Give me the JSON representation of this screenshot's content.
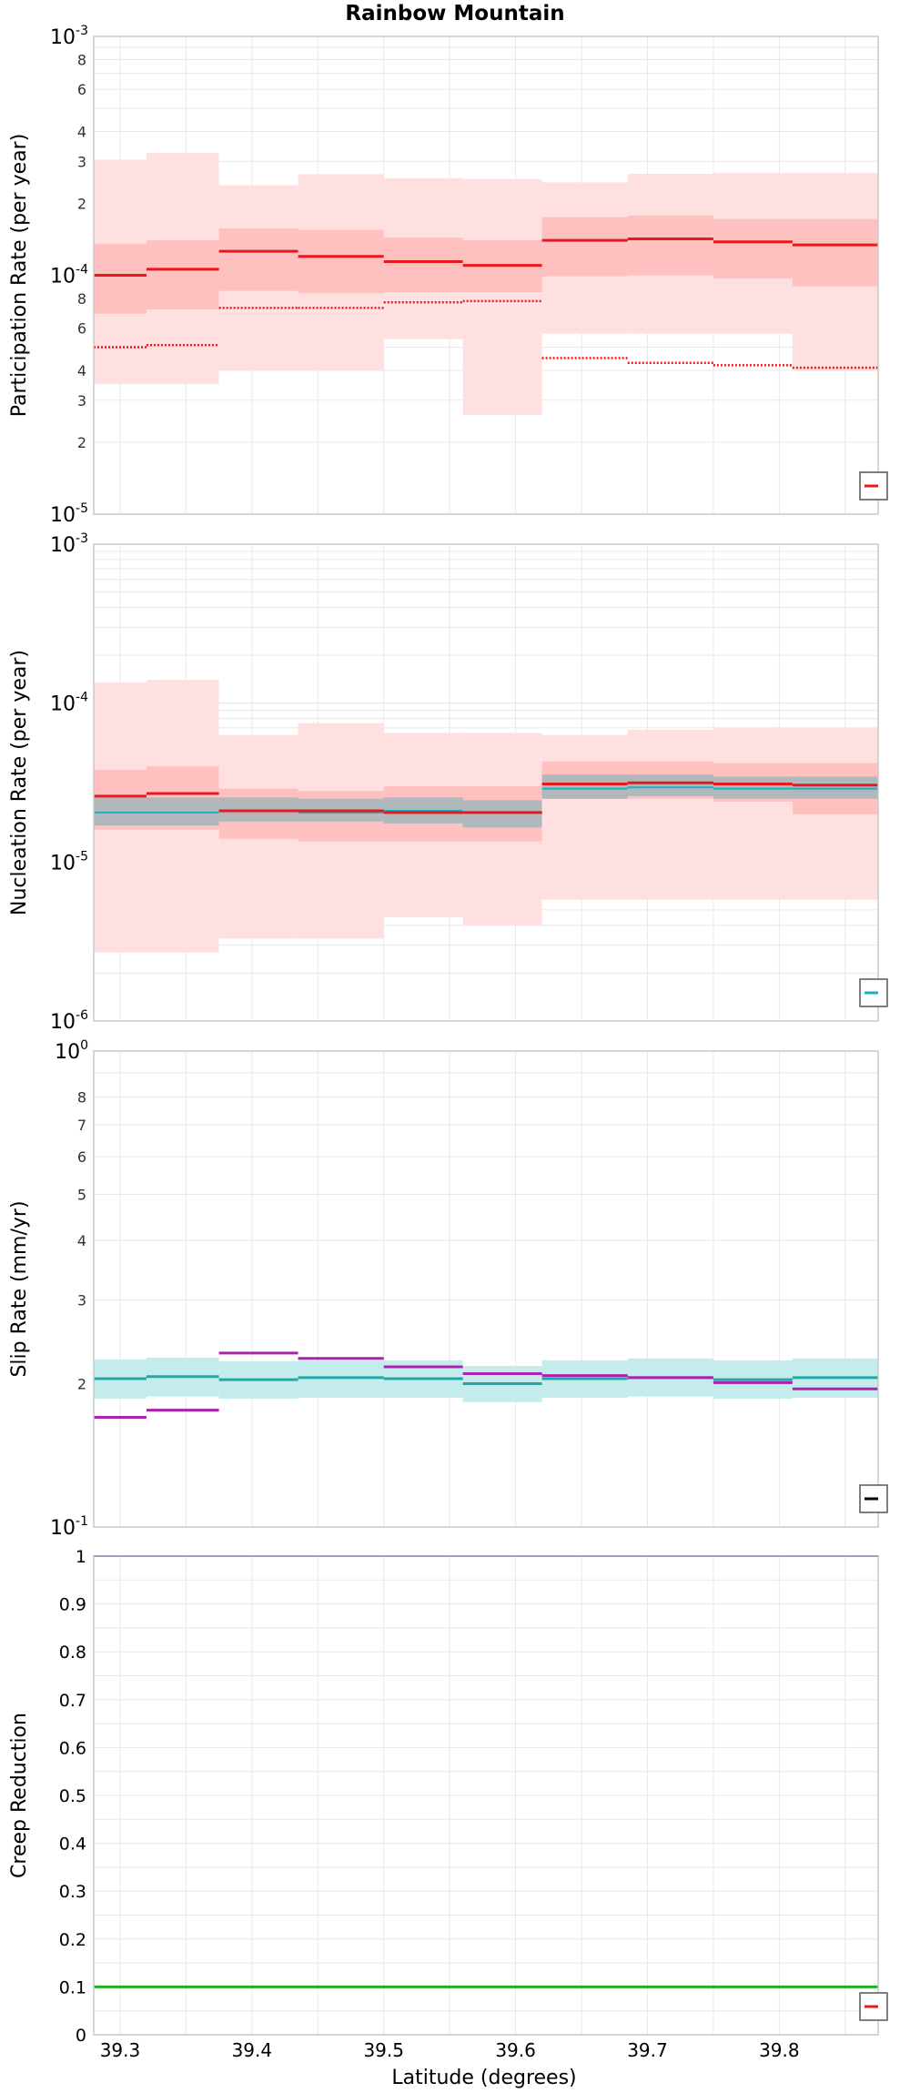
{
  "title": "Rainbow Mountain",
  "xlabel": "Latitude (degrees)",
  "x_tick_labels": [
    "39.3",
    "39.4",
    "39.5",
    "39.6",
    "39.7",
    "39.8"
  ],
  "colors": {
    "participation": "#e8191c",
    "participation_band_inner": "#ffc0c0",
    "participation_band_outer": "#ffe0e0",
    "nucleation_mean": "#e8191c",
    "nucleation_cyan": "#1ab0c0",
    "nucleation_gray_band": "#b0b8bc",
    "slip_cyan": "#20a8a8",
    "slip_band": "#c4ecec",
    "slip_purple": "#b020b0",
    "creep_top": "#2020a0",
    "creep_green": "#20b020",
    "grid": "#e8e8e8",
    "frame": "#c8c8c8"
  },
  "chart_data": [
    {
      "type": "line",
      "ylabel": "Participation Rate (per year)",
      "yscale": "log",
      "ylim": [
        1e-05,
        0.001
      ],
      "xlim": [
        39.28,
        39.875
      ],
      "grid": true,
      "legend": "bottom-right",
      "y_tick_labels": [
        {
          "v": 0.001,
          "major": true,
          "base": "10",
          "exp": "-3"
        },
        {
          "v": 0.0008,
          "label": "8"
        },
        {
          "v": 0.0006,
          "label": "6"
        },
        {
          "v": 0.0004,
          "label": "4"
        },
        {
          "v": 0.0003,
          "label": "3"
        },
        {
          "v": 0.0002,
          "label": "2"
        },
        {
          "v": 0.0001,
          "major": true,
          "base": "10",
          "exp": "-4"
        },
        {
          "v": 8e-05,
          "label": "8"
        },
        {
          "v": 6e-05,
          "label": "6"
        },
        {
          "v": 4e-05,
          "label": "4"
        },
        {
          "v": 3e-05,
          "label": "3"
        },
        {
          "v": 2e-05,
          "label": "2"
        },
        {
          "v": 1e-05,
          "major": true,
          "base": "10",
          "exp": "-5"
        }
      ],
      "bins": [
        39.28,
        39.32,
        39.375,
        39.435,
        39.5,
        39.56,
        39.62,
        39.685,
        39.75,
        39.81,
        39.875
      ],
      "mean": [
        0.0001,
        0.000106,
        0.000126,
        0.00012,
        0.000114,
        0.00011,
        0.00014,
        0.000142,
        0.000138,
        0.000134
      ],
      "min_dotted": [
        5e-05,
        5.1e-05,
        7.3e-05,
        7.3e-05,
        7.7e-05,
        7.8e-05,
        4.5e-05,
        4.3e-05,
        4.2e-05,
        4.1e-05
      ],
      "band_inner_low": [
        6.9e-05,
        7.2e-05,
        8.6e-05,
        8.4e-05,
        8.5e-05,
        8.5e-05,
        9.9e-05,
        0.0001,
        9.7e-05,
        9e-05
      ],
      "band_inner_high": [
        0.000135,
        0.00014,
        0.000157,
        0.000155,
        0.000144,
        0.00014,
        0.000175,
        0.000178,
        0.000172,
        0.000172
      ],
      "band_outer_low": [
        3.5e-05,
        3.5e-05,
        4e-05,
        4e-05,
        5.4e-05,
        2.6e-05,
        5.7e-05,
        5.7e-05,
        5.7e-05,
        4e-05
      ],
      "band_outer_high": [
        0.000305,
        0.000325,
        0.000238,
        0.000265,
        0.000255,
        0.000253,
        0.000245,
        0.000266,
        0.000268,
        0.000268
      ]
    },
    {
      "type": "line",
      "ylabel": "Nucleation Rate (per year)",
      "yscale": "log",
      "ylim": [
        1e-06,
        0.001
      ],
      "xlim": [
        39.28,
        39.875
      ],
      "grid": true,
      "legend": "bottom-right",
      "y_tick_labels": [
        {
          "v": 0.001,
          "major": true,
          "base": "10",
          "exp": "-3"
        },
        {
          "v": 0.0001,
          "major": true,
          "base": "10",
          "exp": "-4"
        },
        {
          "v": 1e-05,
          "major": true,
          "base": "10",
          "exp": "-5"
        },
        {
          "v": 1e-06,
          "major": true,
          "base": "10",
          "exp": "-6"
        }
      ],
      "bins": [
        39.28,
        39.32,
        39.375,
        39.435,
        39.5,
        39.56,
        39.62,
        39.685,
        39.75,
        39.81,
        39.875
      ],
      "mean": [
        2.6e-05,
        2.7e-05,
        2.1e-05,
        2.1e-05,
        2.05e-05,
        2.05e-05,
        3.1e-05,
        3.15e-05,
        3.1e-05,
        3.05e-05
      ],
      "cyan": [
        2.05e-05,
        2.05e-05,
        2.1e-05,
        2.05e-05,
        2.1e-05,
        2.05e-05,
        2.9e-05,
        2.95e-05,
        2.9e-05,
        2.9e-05
      ],
      "gray_low": [
        1.7e-05,
        1.7e-05,
        1.8e-05,
        1.8e-05,
        1.75e-05,
        1.65e-05,
        2.5e-05,
        2.6e-05,
        2.5e-05,
        2.5e-05
      ],
      "gray_high": [
        2.55e-05,
        2.55e-05,
        2.55e-05,
        2.5e-05,
        2.55e-05,
        2.45e-05,
        3.55e-05,
        3.55e-05,
        3.45e-05,
        3.45e-05
      ],
      "band_inner_low": [
        1.6e-05,
        1.6e-05,
        1.4e-05,
        1.35e-05,
        1.35e-05,
        1.35e-05,
        2.5e-05,
        2.5e-05,
        2.4e-05,
        2e-05
      ],
      "band_inner_high": [
        3.8e-05,
        4e-05,
        2.9e-05,
        2.8e-05,
        3e-05,
        3e-05,
        4.3e-05,
        4.3e-05,
        4.2e-05,
        4.2e-05
      ],
      "band_outer_low": [
        2.7e-06,
        2.7e-06,
        3.3e-06,
        3.3e-06,
        4.5e-06,
        4e-06,
        5.8e-06,
        5.8e-06,
        5.8e-06,
        5.8e-06
      ],
      "band_outer_high": [
        0.000135,
        0.00014,
        6.3e-05,
        7.5e-05,
        6.5e-05,
        6.5e-05,
        6.3e-05,
        6.8e-05,
        7e-05,
        7e-05
      ]
    },
    {
      "type": "line",
      "ylabel": "Slip Rate (mm/yr)",
      "yscale": "log",
      "ylim": [
        0.1,
        1
      ],
      "xlim": [
        39.28,
        39.875
      ],
      "grid": true,
      "legend": "bottom-right",
      "y_tick_labels": [
        {
          "v": 1,
          "major": true,
          "base": "10",
          "exp": "0"
        },
        {
          "v": 0.8,
          "label": "8"
        },
        {
          "v": 0.7,
          "label": "7"
        },
        {
          "v": 0.6,
          "label": "6"
        },
        {
          "v": 0.5,
          "label": "5"
        },
        {
          "v": 0.4,
          "label": "4"
        },
        {
          "v": 0.3,
          "label": "3"
        },
        {
          "v": 0.2,
          "label": "2"
        },
        {
          "v": 0.1,
          "major": true,
          "base": "10",
          "exp": "-1"
        }
      ],
      "bins": [
        39.28,
        39.32,
        39.375,
        39.435,
        39.5,
        39.56,
        39.62,
        39.685,
        39.75,
        39.81,
        39.875
      ],
      "cyan": [
        0.205,
        0.207,
        0.204,
        0.206,
        0.205,
        0.2,
        0.205,
        0.206,
        0.204,
        0.206
      ],
      "cyan_band_low": [
        0.186,
        0.188,
        0.186,
        0.187,
        0.187,
        0.183,
        0.187,
        0.188,
        0.186,
        0.187
      ],
      "cyan_band_high": [
        0.225,
        0.227,
        0.223,
        0.224,
        0.224,
        0.218,
        0.224,
        0.226,
        0.224,
        0.226
      ],
      "purple": [
        0.17,
        0.176,
        0.232,
        0.226,
        0.217,
        0.21,
        0.208,
        0.206,
        0.201,
        0.195
      ]
    },
    {
      "type": "line",
      "ylabel": "Creep Reduction",
      "yscale": "linear",
      "ylim": [
        0,
        1
      ],
      "xlim": [
        39.28,
        39.875
      ],
      "grid": true,
      "legend": "bottom-right",
      "y_tick_labels": [
        {
          "v": 1,
          "label": "1"
        },
        {
          "v": 0.9,
          "label": "0.9"
        },
        {
          "v": 0.8,
          "label": "0.8"
        },
        {
          "v": 0.7,
          "label": "0.7"
        },
        {
          "v": 0.6,
          "label": "0.6"
        },
        {
          "v": 0.5,
          "label": "0.5"
        },
        {
          "v": 0.4,
          "label": "0.4"
        },
        {
          "v": 0.3,
          "label": "0.3"
        },
        {
          "v": 0.2,
          "label": "0.2"
        },
        {
          "v": 0.1,
          "label": "0.1"
        },
        {
          "v": 0,
          "label": "0"
        }
      ],
      "top_line": 1,
      "green_line": 0.1
    }
  ]
}
